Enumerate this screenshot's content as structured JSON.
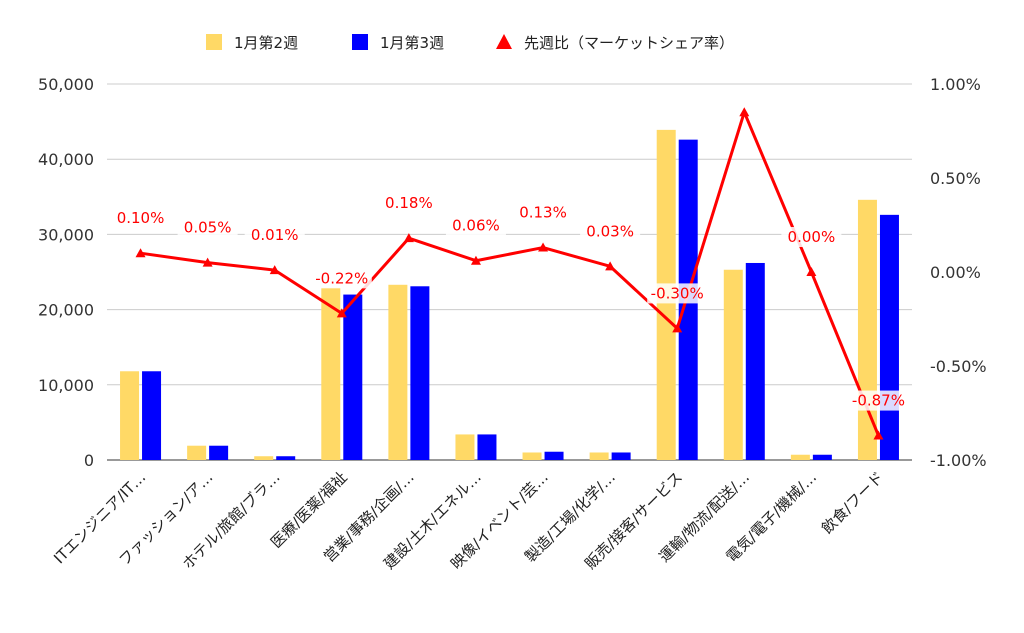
{
  "chart_data": {
    "type": "bar",
    "categories": [
      "ITエンジニア/IT…",
      "ファッション/ア…",
      "ホテル/旅館/ブラ…",
      "医療/医薬/福祉",
      "営業/事務/企画/…",
      "建設/土木/エネル…",
      "映像/イベント/芸…",
      "製造/工場/化学/…",
      "販売/接客/サービス",
      "運輸/物流/配送/…",
      "電気/電子/機械/…",
      "飲食/フード"
    ],
    "series": [
      {
        "name": "1月第2週",
        "type": "bar",
        "axis": "left",
        "color": "#ffd966",
        "values": [
          11800,
          1900,
          500,
          22900,
          23300,
          3400,
          1000,
          1000,
          43900,
          25300,
          700,
          34600
        ]
      },
      {
        "name": "1月第3週",
        "type": "bar",
        "axis": "left",
        "color": "#0000ff",
        "values": [
          11800,
          1900,
          500,
          22000,
          23100,
          3400,
          1100,
          1000,
          42600,
          26200,
          700,
          32600
        ]
      },
      {
        "name": "先週比（マーケットシェア率）",
        "type": "line",
        "axis": "right",
        "color": "#ff0000",
        "marker": "triangle",
        "values": [
          0.1,
          0.05,
          0.01,
          -0.22,
          0.18,
          0.06,
          0.13,
          0.03,
          -0.3,
          0.85,
          0.0,
          -0.87
        ],
        "labels": [
          "0.10%",
          "0.05%",
          "0.01%",
          "-0.22%",
          "0.18%",
          "0.06%",
          "0.13%",
          "0.03%",
          "-0.30%",
          "",
          "0.00%",
          "-0.87%"
        ]
      }
    ],
    "y_left": {
      "ylim": [
        0,
        50000
      ],
      "ticks": [
        0,
        10000,
        20000,
        30000,
        40000,
        50000
      ],
      "tick_labels": [
        "0",
        "10,000",
        "20,000",
        "30,000",
        "40,000",
        "50,000"
      ]
    },
    "y_right": {
      "ylim": [
        -1.0,
        1.0
      ],
      "ticks": [
        -1.0,
        -0.5,
        0.0,
        0.5,
        1.0
      ],
      "tick_labels": [
        "-1.00%",
        "-0.50%",
        "0.00%",
        "0.50%",
        "1.00%"
      ]
    },
    "legend": "top",
    "grid": true
  }
}
